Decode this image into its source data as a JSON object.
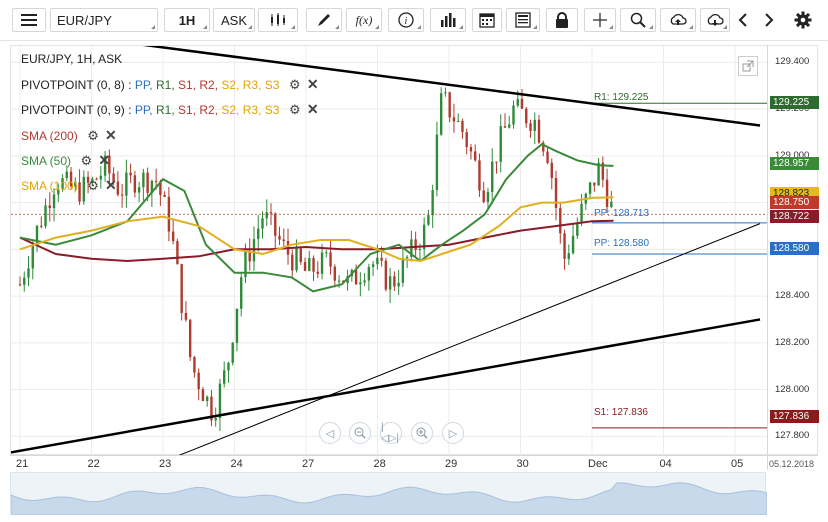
{
  "toolbar": {
    "symbol": "EUR/JPY",
    "interval": "1H",
    "price_type": "ASK",
    "fx_label": "f(x)",
    "icons": [
      "menu-icon",
      "candles-icon",
      "draw-icon",
      "function-icon",
      "info-icon",
      "bars-icon",
      "calendar-icon",
      "report-icon",
      "lock-icon",
      "crosshair-icon",
      "zoom-icon",
      "upload-icon",
      "download-icon",
      "prev-icon",
      "next-icon",
      "settings-icon"
    ]
  },
  "legend": {
    "title": "EUR/JPY, 1H, ASK",
    "pivot1": {
      "name": "PIVOTPOINT (0, 8)",
      "sep": ":",
      "items": [
        "PP",
        "R1",
        "S1",
        "R2",
        "S2",
        "R3",
        "S3"
      ]
    },
    "pivot2": {
      "name": "PIVOTPOINT (0, 9)",
      "sep": ":",
      "items": [
        "PP",
        "R1",
        "S1",
        "R2",
        "S2",
        "R3",
        "S3"
      ]
    },
    "sma200": "SMA (200)",
    "sma50": "SMA (50)",
    "sma100": "SMA (100)"
  },
  "pivot_levels": {
    "r1": "R1: 129.225",
    "pp1": "PP: 128.713",
    "pp2": "PP: 128.580",
    "s1": "S1: 127.836"
  },
  "price_labels": {
    "r1": "129.225",
    "sma50": "128.957",
    "sma100": "128.823",
    "last": "128.750",
    "sma200": "128.722",
    "pp2": "128.580",
    "s1": "127.836"
  },
  "footer_date": "05.12.2018",
  "colors": {
    "up": "#2e8b3a",
    "down": "#b03a2e",
    "sma200": "#8b1a2b",
    "sma50": "#3a8a3a",
    "sma100": "#e0b020",
    "pp": "#2a6fc7",
    "r1": "#2e6b2e",
    "s1": "#8b1a1a"
  },
  "chart_data": {
    "type": "candlestick",
    "title": "EUR/JPY, 1H, ASK",
    "ylim": [
      127.72,
      129.47
    ],
    "y_ticks": [
      129.4,
      129.2,
      129.0,
      128.8,
      128.6,
      128.4,
      128.2,
      128.0,
      127.8
    ],
    "y_tick_labels": [
      "129.400",
      "129.200",
      "129.000",
      "",
      "",
      "128.400",
      "128.200",
      "128.000",
      "127.800"
    ],
    "x_ticks": [
      "21",
      "22",
      "23",
      "24",
      "27",
      "28",
      "29",
      "30",
      "Dec",
      "04",
      "05"
    ],
    "x_tick_positions": [
      0,
      1,
      2,
      3,
      4,
      5,
      6,
      7,
      8,
      9,
      10
    ],
    "xlim": [
      0,
      10.3
    ],
    "close_path": [
      [
        0,
        128.45
      ],
      [
        0.2,
        128.65
      ],
      [
        0.5,
        128.9
      ],
      [
        0.8,
        128.85
      ],
      [
        1.0,
        128.88
      ],
      [
        1.2,
        128.95
      ],
      [
        1.4,
        128.85
      ],
      [
        1.6,
        128.9
      ],
      [
        1.9,
        128.9
      ],
      [
        2.1,
        128.7
      ],
      [
        2.4,
        128.1
      ],
      [
        2.7,
        127.9
      ],
      [
        2.9,
        128.1
      ],
      [
        3.1,
        128.5
      ],
      [
        3.4,
        128.75
      ],
      [
        3.7,
        128.6
      ],
      [
        4.0,
        128.5
      ],
      [
        4.3,
        128.55
      ],
      [
        4.6,
        128.45
      ],
      [
        4.9,
        128.55
      ],
      [
        5.2,
        128.45
      ],
      [
        5.5,
        128.6
      ],
      [
        5.7,
        128.7
      ],
      [
        5.9,
        129.25
      ],
      [
        6.2,
        129.1
      ],
      [
        6.5,
        128.85
      ],
      [
        6.7,
        129.05
      ],
      [
        6.9,
        129.2
      ],
      [
        7.2,
        129.15
      ],
      [
        7.4,
        129.0
      ],
      [
        7.6,
        128.55
      ],
      [
        7.9,
        128.8
      ],
      [
        8.1,
        128.95
      ],
      [
        8.3,
        128.75
      ]
    ],
    "series": [
      {
        "name": "SMA (200)",
        "points": [
          [
            0,
            128.65
          ],
          [
            0.5,
            128.58
          ],
          [
            1.0,
            128.56
          ],
          [
            1.5,
            128.55
          ],
          [
            2.0,
            128.56
          ],
          [
            2.5,
            128.57
          ],
          [
            3.0,
            128.6
          ],
          [
            3.5,
            128.6
          ],
          [
            4.0,
            128.61
          ],
          [
            4.5,
            128.6
          ],
          [
            5.0,
            128.6
          ],
          [
            5.5,
            128.61
          ],
          [
            6.0,
            128.62
          ],
          [
            6.5,
            128.65
          ],
          [
            7.0,
            128.68
          ],
          [
            7.5,
            128.7
          ],
          [
            8.0,
            128.72
          ],
          [
            8.3,
            128.722
          ]
        ]
      },
      {
        "name": "SMA (50)",
        "points": [
          [
            0,
            128.65
          ],
          [
            0.5,
            128.62
          ],
          [
            1.0,
            128.66
          ],
          [
            1.5,
            128.72
          ],
          [
            2.0,
            128.9
          ],
          [
            2.3,
            128.85
          ],
          [
            2.6,
            128.62
          ],
          [
            3.0,
            128.5
          ],
          [
            3.4,
            128.5
          ],
          [
            3.8,
            128.48
          ],
          [
            4.1,
            128.42
          ],
          [
            4.5,
            128.45
          ],
          [
            4.9,
            128.58
          ],
          [
            5.3,
            128.62
          ],
          [
            5.6,
            128.55
          ],
          [
            5.9,
            128.62
          ],
          [
            6.2,
            128.68
          ],
          [
            6.5,
            128.75
          ],
          [
            6.8,
            128.9
          ],
          [
            7.1,
            129.0
          ],
          [
            7.3,
            129.05
          ],
          [
            7.5,
            129.02
          ],
          [
            7.8,
            128.98
          ],
          [
            8.1,
            128.96
          ],
          [
            8.3,
            128.957
          ]
        ]
      },
      {
        "name": "SMA (100)",
        "points": [
          [
            0,
            128.6
          ],
          [
            0.5,
            128.65
          ],
          [
            1.0,
            128.68
          ],
          [
            1.5,
            128.72
          ],
          [
            2.0,
            128.74
          ],
          [
            2.5,
            128.7
          ],
          [
            3.0,
            128.6
          ],
          [
            3.4,
            128.58
          ],
          [
            3.8,
            128.62
          ],
          [
            4.2,
            128.64
          ],
          [
            4.6,
            128.64
          ],
          [
            5.0,
            128.6
          ],
          [
            5.3,
            128.56
          ],
          [
            5.6,
            128.55
          ],
          [
            5.9,
            128.58
          ],
          [
            6.3,
            128.62
          ],
          [
            6.7,
            128.7
          ],
          [
            7.0,
            128.78
          ],
          [
            7.3,
            128.8
          ],
          [
            7.6,
            128.8
          ],
          [
            8.0,
            128.82
          ],
          [
            8.3,
            128.823
          ]
        ]
      }
    ],
    "levels": [
      {
        "name": "R1",
        "value": 129.225
      },
      {
        "name": "PP",
        "value": 128.713
      },
      {
        "name": "PP",
        "value": 128.58
      },
      {
        "name": "S1",
        "value": 127.836
      }
    ],
    "trendlines": [
      {
        "from": [
          -0.15,
          129.55
        ],
        "to": [
          10.35,
          129.13
        ],
        "weight": "thick"
      },
      {
        "from": [
          1.5,
          127.63
        ],
        "to": [
          10.35,
          128.71
        ],
        "weight": "thin"
      },
      {
        "from": [
          -0.15,
          127.73
        ],
        "to": [
          10.35,
          128.3
        ],
        "weight": "thick"
      }
    ]
  }
}
